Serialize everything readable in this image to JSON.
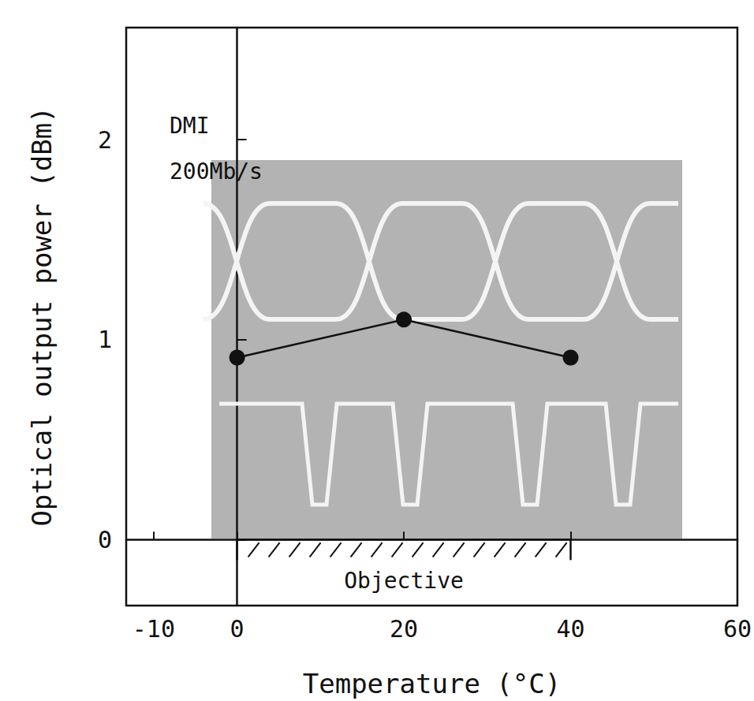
{
  "chart_data": {
    "type": "line",
    "x": [
      0,
      20,
      40
    ],
    "series": [
      {
        "values": [
          0.91,
          1.1,
          0.91
        ],
        "color": "#111111",
        "marker": "circle",
        "line_style": "solid"
      }
    ],
    "xlabel": "Temperature (°C)",
    "ylabel": "Optical output power (dBm)",
    "xlim": [
      -13.3,
      60
    ],
    "xticks": [
      -10,
      0,
      20,
      40,
      60
    ],
    "ylim": [
      -0.33,
      2.56
    ],
    "yticks": [
      0,
      1,
      2
    ],
    "annotations": [
      {
        "text": "DMI",
        "x": -8.1,
        "y": 2.07
      },
      {
        "text": "200Mb/s",
        "x": -8.1,
        "y": 1.84
      },
      {
        "text": "Objective",
        "x": [
          0,
          40
        ],
        "y": 0
      }
    ],
    "grid": false
  }
}
